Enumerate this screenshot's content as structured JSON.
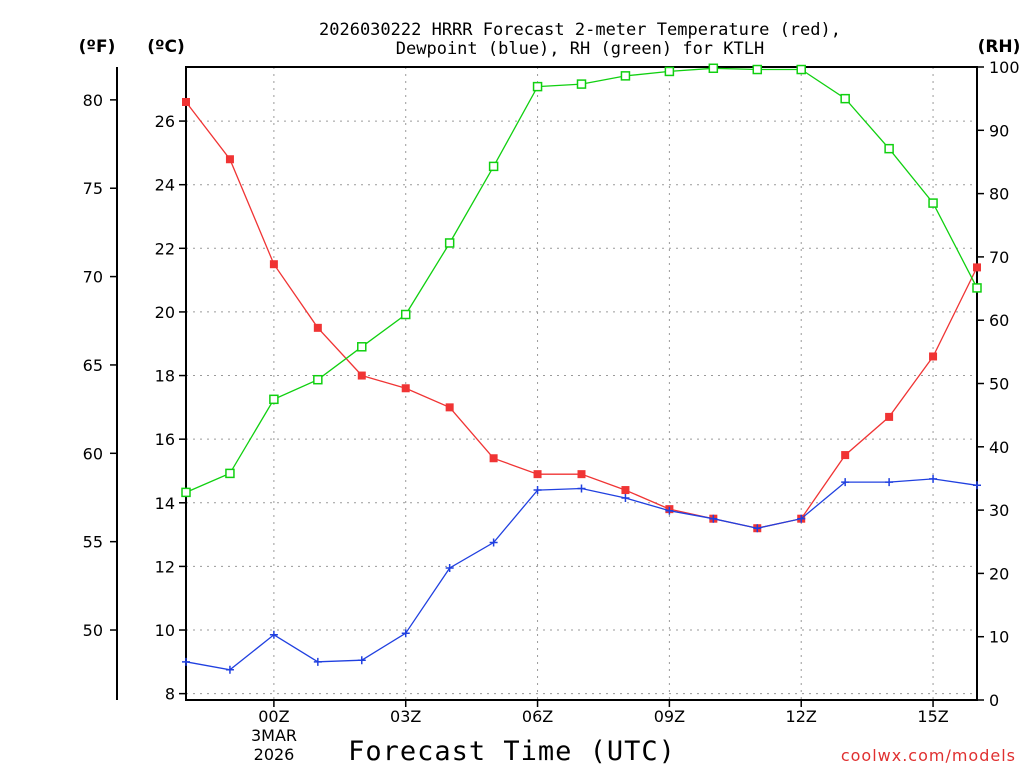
{
  "chart_data": {
    "type": "line",
    "title": "2026030222 HRRR Forecast 2-meter Temperature (red),",
    "subtitle": "Dewpoint (blue), RH (green) for KTLH",
    "xlabel": "Forecast Time (UTC)",
    "credit": "coolwx.com/models",
    "units": {
      "left_outer": "(ºF)",
      "left_inner": "(ºC)",
      "right": "(RH)"
    },
    "x_hours": [
      -2,
      -1,
      0,
      1,
      2,
      3,
      4,
      5,
      6,
      7,
      8,
      9,
      10,
      11,
      12,
      13,
      14,
      15,
      16
    ],
    "x_ticks": [
      {
        "hour": 0,
        "label": "00Z"
      },
      {
        "hour": 3,
        "label": "03Z"
      },
      {
        "hour": 6,
        "label": "06Z"
      },
      {
        "hour": 9,
        "label": "09Z"
      },
      {
        "hour": 12,
        "label": "12Z"
      },
      {
        "hour": 15,
        "label": "15Z"
      }
    ],
    "date_label": {
      "day": "3MAR",
      "year": "2026"
    },
    "xlim": [
      -2,
      16
    ],
    "ylim_celsius": [
      7.8,
      27.7
    ],
    "ylim_rh": [
      0,
      100
    ],
    "celsius_ticks": [
      8,
      10,
      12,
      14,
      16,
      18,
      20,
      22,
      24,
      26
    ],
    "fahrenheit_ticks": [
      50,
      55,
      60,
      65,
      70,
      75,
      80
    ],
    "rh_ticks": [
      0,
      10,
      20,
      30,
      40,
      50,
      60,
      70,
      80,
      90,
      100
    ],
    "series": [
      {
        "name": "Temperature",
        "unit": "C",
        "color": "#f03434",
        "marker": "filled-square",
        "values": [
          26.6,
          24.8,
          21.5,
          19.5,
          18.0,
          17.6,
          17.0,
          15.4,
          14.9,
          14.9,
          14.4,
          13.8,
          13.5,
          13.2,
          13.5,
          15.5,
          16.7,
          18.6,
          21.4
        ]
      },
      {
        "name": "Dewpoint",
        "unit": "C",
        "color": "#2040e0",
        "marker": "plus",
        "values": [
          9.0,
          8.75,
          9.85,
          9.0,
          9.05,
          9.9,
          11.95,
          12.75,
          14.4,
          14.45,
          14.15,
          13.75,
          13.5,
          13.2,
          13.5,
          14.65,
          14.65,
          14.75,
          14.55
        ]
      },
      {
        "name": "Relative Humidity",
        "unit": "%",
        "color": "#10d010",
        "marker": "open-square",
        "values": [
          32.8,
          35.8,
          47.5,
          50.6,
          55.8,
          60.9,
          72.2,
          84.3,
          96.9,
          97.3,
          98.6,
          99.3,
          99.8,
          99.6,
          99.6,
          95.0,
          87.1,
          78.5,
          65.1
        ]
      }
    ]
  }
}
